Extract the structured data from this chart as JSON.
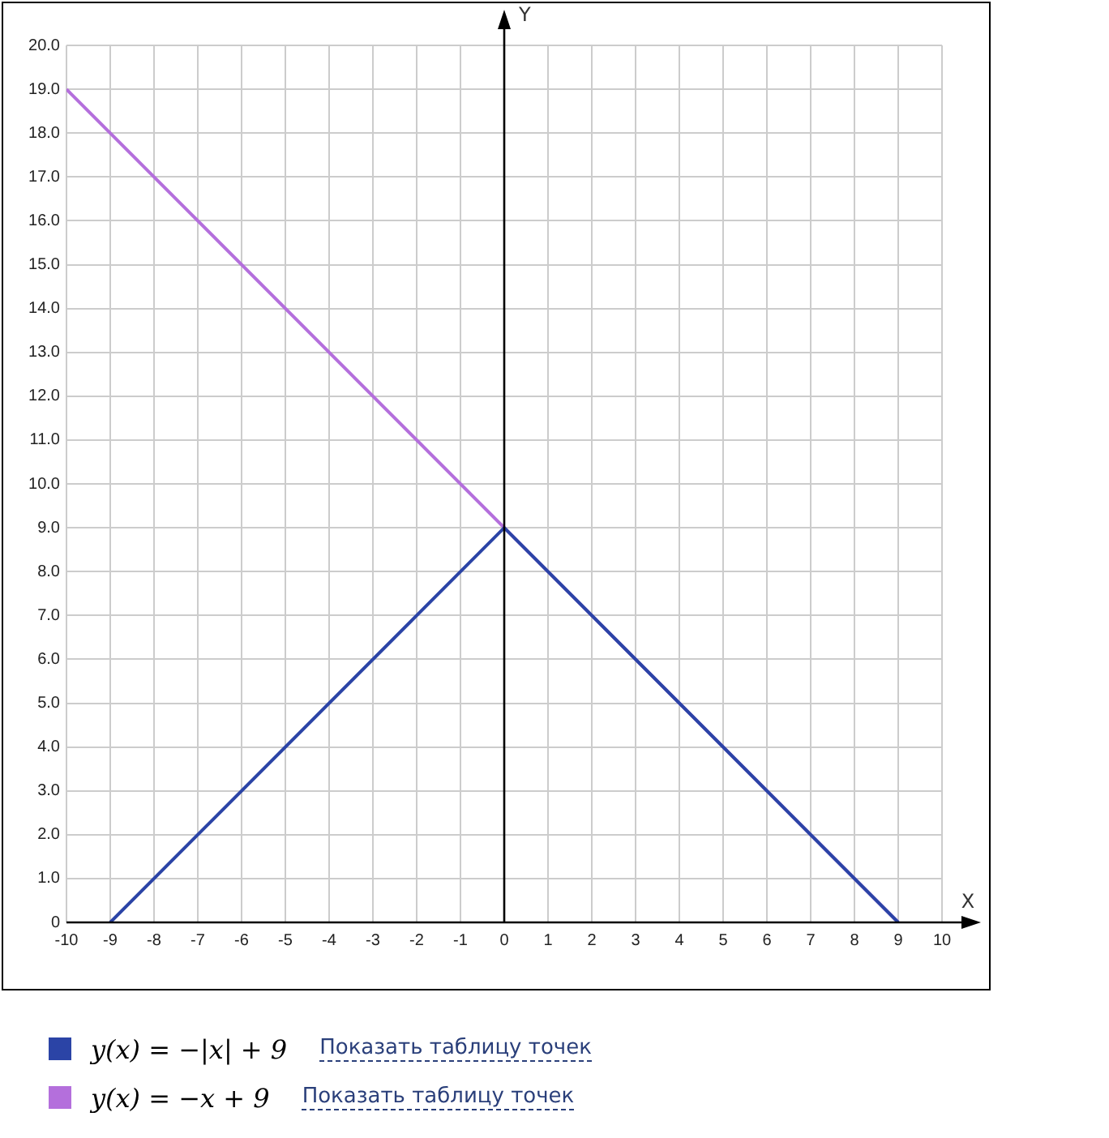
{
  "chart_data": {
    "type": "line",
    "xlabel": "X",
    "ylabel": "Y",
    "xlim": [
      -10,
      10
    ],
    "xticks": [
      -10,
      -9,
      -8,
      -7,
      -6,
      -5,
      -4,
      -3,
      -2,
      -1,
      0,
      1,
      2,
      3,
      4,
      5,
      6,
      7,
      8,
      9,
      10
    ],
    "ylim": [
      0,
      20
    ],
    "yticks": [
      0,
      {
        "value": 1,
        "label": "1.0"
      },
      {
        "value": 2,
        "label": "2.0"
      },
      {
        "value": 3,
        "label": "3.0"
      },
      {
        "value": 4,
        "label": "4.0"
      },
      {
        "value": 5,
        "label": "5.0"
      },
      {
        "value": 6,
        "label": "6.0"
      },
      {
        "value": 7,
        "label": "7.0"
      },
      {
        "value": 8,
        "label": "8.0"
      },
      {
        "value": 9,
        "label": "9.0"
      },
      {
        "value": 10,
        "label": "10.0"
      },
      {
        "value": 11,
        "label": "11.0"
      },
      {
        "value": 12,
        "label": "12.0"
      },
      {
        "value": 13,
        "label": "13.0"
      },
      {
        "value": 14,
        "label": "14.0"
      },
      {
        "value": 15,
        "label": "15.0"
      },
      {
        "value": 16,
        "label": "16.0"
      },
      {
        "value": 17,
        "label": "17.0"
      },
      {
        "value": 18,
        "label": "18.0"
      },
      {
        "value": 19,
        "label": "19.0"
      },
      {
        "value": 20,
        "label": "20.0"
      }
    ],
    "grid": true,
    "legend": "bottom",
    "marker": "none",
    "line_style": "solid",
    "series": [
      {
        "name": "y(x) = −|x| + 9",
        "color": "#2b44a6",
        "x": [
          -9,
          0,
          9
        ],
        "values": [
          0,
          9,
          0
        ]
      },
      {
        "name": "y(x) = −x + 9",
        "color": "#b46fdc",
        "x": [
          -10,
          9
        ],
        "values": [
          19,
          0
        ]
      }
    ],
    "annotations": [
      "Показать таблицу точек",
      "Показать таблицу точек"
    ]
  }
}
